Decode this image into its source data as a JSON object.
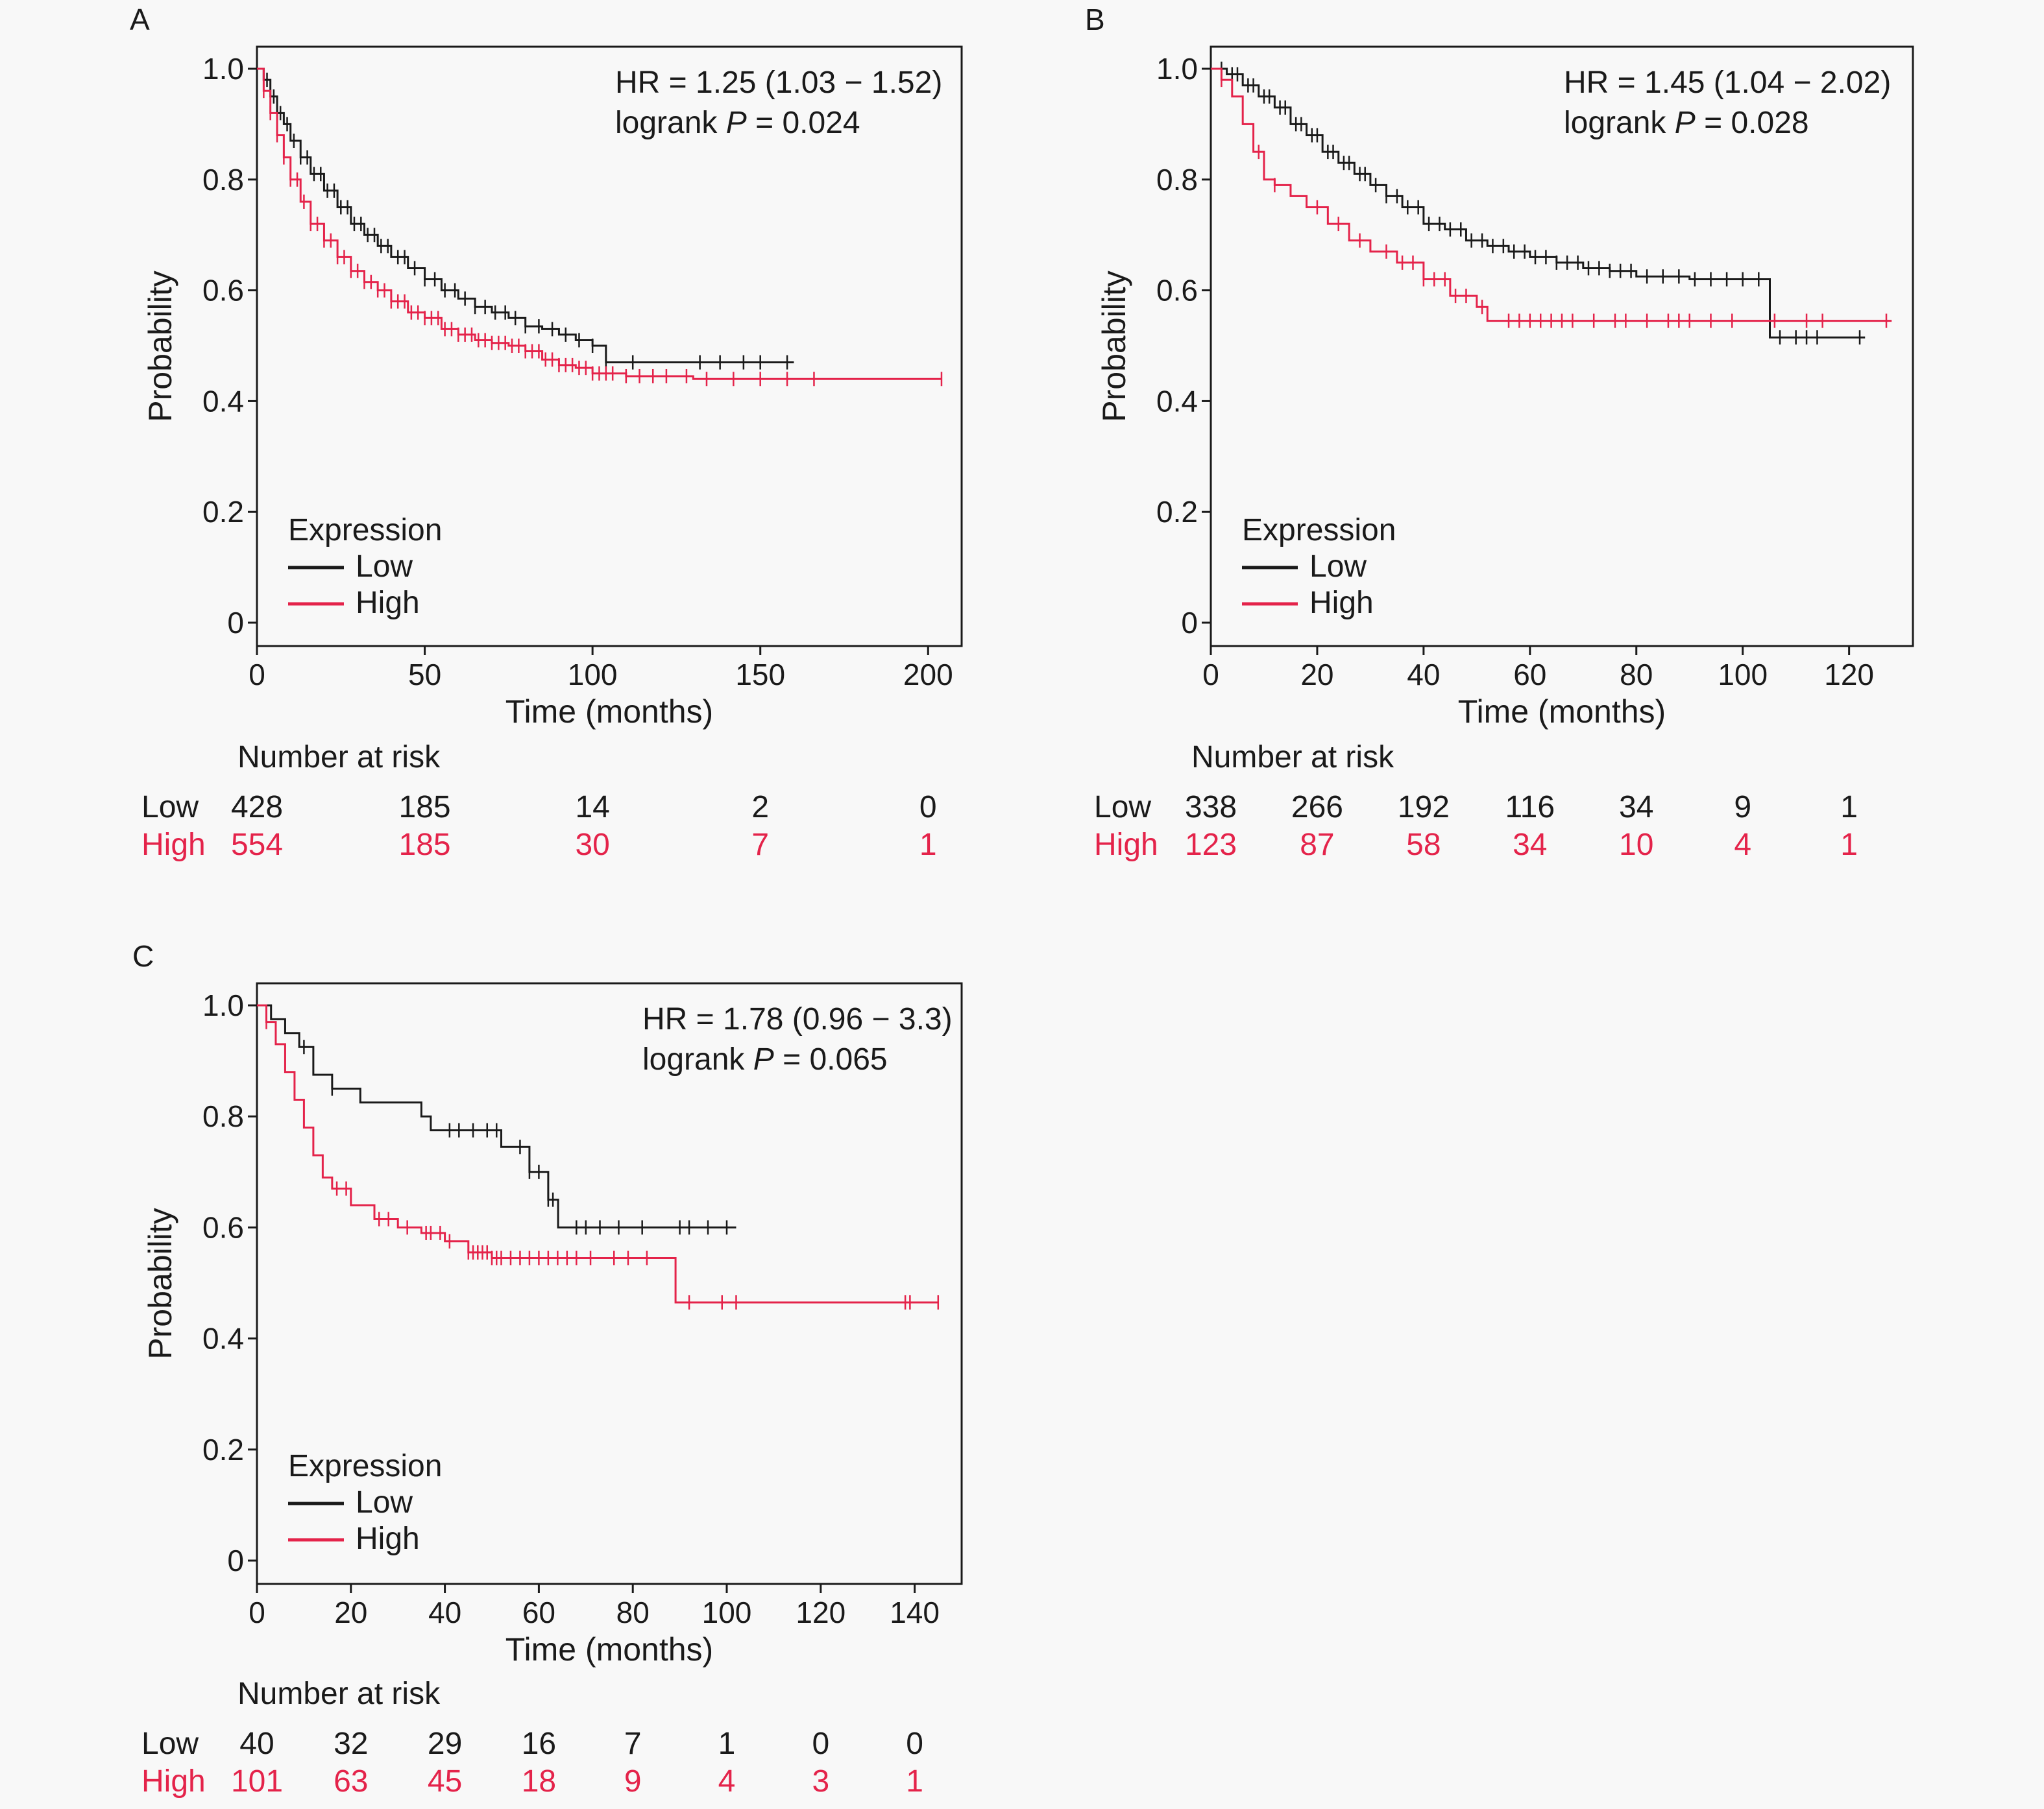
{
  "colors": {
    "low": "#1a1a1a",
    "high": "#e4234a",
    "text": "#1a1a1a",
    "background": "#f8f8f8"
  },
  "chart_data": [
    {
      "panel": "A",
      "type": "line",
      "stat_line1": "HR = 1.25 (1.03 − 1.52)",
      "stat_prefix": "logrank ",
      "stat_p": "P",
      "stat_suffix": " = 0.024",
      "xlabel": "Time (months)",
      "ylabel": "Probability",
      "xlim": [
        0,
        210
      ],
      "ylim": [
        0,
        1
      ],
      "xticks": [
        0,
        50,
        100,
        150,
        200
      ],
      "yticks": [
        0,
        0.2,
        0.4,
        0.6,
        0.8,
        1.0
      ],
      "ytick_labels": [
        "0",
        "0.2",
        "0.4",
        "0.6",
        "0.8",
        "1.0"
      ],
      "legend": {
        "title": "Expression",
        "entries": [
          "Low",
          "High"
        ],
        "position": "bottom-left"
      },
      "series": [
        {
          "name": "Low",
          "x": [
            0,
            2,
            4,
            6,
            8,
            10,
            13,
            16,
            20,
            24,
            28,
            32,
            36,
            40,
            45,
            50,
            55,
            60,
            65,
            70,
            75,
            80,
            85,
            90,
            95,
            100,
            104,
            110,
            130,
            150,
            160
          ],
          "y": [
            1.0,
            0.98,
            0.95,
            0.92,
            0.9,
            0.87,
            0.84,
            0.81,
            0.78,
            0.75,
            0.72,
            0.7,
            0.68,
            0.66,
            0.64,
            0.62,
            0.6,
            0.585,
            0.57,
            0.56,
            0.55,
            0.535,
            0.53,
            0.52,
            0.51,
            0.5,
            0.47,
            0.47,
            0.47,
            0.47,
            0.47
          ],
          "censors": [
            3,
            5,
            7,
            9,
            11,
            13,
            15,
            17,
            19,
            21,
            23,
            25,
            27,
            29,
            31,
            33,
            35,
            37,
            39,
            42,
            44,
            47,
            50,
            53,
            56,
            59,
            62,
            65,
            68,
            71,
            74,
            77,
            80,
            84,
            88,
            92,
            96,
            100,
            104,
            112,
            132,
            138,
            145,
            150,
            158
          ]
        },
        {
          "name": "High",
          "x": [
            0,
            2,
            4,
            6,
            8,
            10,
            13,
            16,
            20,
            24,
            28,
            32,
            36,
            40,
            45,
            50,
            55,
            60,
            65,
            70,
            75,
            80,
            85,
            90,
            95,
            100,
            110,
            130,
            160,
            200,
            204
          ],
          "y": [
            1.0,
            0.96,
            0.92,
            0.88,
            0.84,
            0.8,
            0.76,
            0.72,
            0.69,
            0.66,
            0.635,
            0.615,
            0.6,
            0.58,
            0.56,
            0.55,
            0.53,
            0.52,
            0.51,
            0.505,
            0.5,
            0.49,
            0.475,
            0.465,
            0.46,
            0.45,
            0.445,
            0.44,
            0.44,
            0.44,
            0.44
          ],
          "censors": [
            2,
            4,
            6,
            8,
            10,
            12,
            14,
            16,
            18,
            20,
            22,
            24,
            26,
            28,
            30,
            32,
            34,
            36,
            38,
            40,
            42,
            44,
            46,
            48,
            50,
            52,
            54,
            56,
            58,
            60,
            62,
            64,
            66,
            68,
            70,
            72,
            74,
            76,
            78,
            80,
            82,
            84,
            86,
            88,
            90,
            92,
            94,
            96,
            98,
            100,
            102,
            104,
            106,
            110,
            114,
            118,
            122,
            128,
            134,
            142,
            150,
            158,
            166,
            204
          ]
        }
      ],
      "risk_table": {
        "title": "Number at risk",
        "x": [
          0,
          50,
          100,
          150,
          200
        ],
        "rows": [
          {
            "label": "Low",
            "values": [
              "428",
              "185",
              "14",
              "2",
              "0"
            ]
          },
          {
            "label": "High",
            "values": [
              "554",
              "185",
              "30",
              "7",
              "1"
            ]
          }
        ]
      }
    },
    {
      "panel": "B",
      "type": "line",
      "stat_line1": "HR = 1.45 (1.04 − 2.02)",
      "stat_prefix": "logrank ",
      "stat_p": "P",
      "stat_suffix": " = 0.028",
      "xlabel": "Time (months)",
      "ylabel": "Probability",
      "xlim": [
        0,
        132
      ],
      "ylim": [
        0,
        1
      ],
      "xticks": [
        0,
        20,
        40,
        60,
        80,
        100,
        120
      ],
      "yticks": [
        0,
        0.2,
        0.4,
        0.6,
        0.8,
        1.0
      ],
      "ytick_labels": [
        "0",
        "0.2",
        "0.4",
        "0.6",
        "0.8",
        "1.0"
      ],
      "legend": {
        "title": "Expression",
        "entries": [
          "Low",
          "High"
        ],
        "position": "bottom-left"
      },
      "series": [
        {
          "name": "Low",
          "x": [
            0,
            3,
            6,
            9,
            12,
            15,
            18,
            21,
            24,
            27,
            30,
            33,
            36,
            40,
            44,
            48,
            52,
            56,
            60,
            65,
            70,
            75,
            80,
            90,
            100,
            105,
            105.1,
            110,
            123
          ],
          "y": [
            1.0,
            0.99,
            0.97,
            0.95,
            0.93,
            0.9,
            0.88,
            0.85,
            0.83,
            0.81,
            0.79,
            0.77,
            0.75,
            0.72,
            0.71,
            0.69,
            0.68,
            0.67,
            0.66,
            0.65,
            0.64,
            0.635,
            0.625,
            0.62,
            0.62,
            0.62,
            0.515,
            0.515,
            0.515
          ],
          "censors": [
            2,
            4,
            5,
            7,
            8,
            10,
            11,
            13,
            14,
            16,
            17,
            19,
            20,
            22,
            23,
            25,
            26,
            28,
            29,
            31,
            33,
            35,
            37,
            39,
            41,
            43,
            45,
            47,
            49,
            51,
            53,
            55,
            57,
            59,
            61,
            63,
            65,
            67,
            69,
            71,
            73,
            75,
            77,
            79,
            82,
            85,
            88,
            91,
            94,
            97,
            100,
            103,
            107,
            110,
            112,
            114,
            122
          ]
        },
        {
          "name": "High",
          "x": [
            0,
            2,
            4,
            6,
            8,
            10,
            12,
            15,
            18,
            22,
            26,
            30,
            35,
            40,
            45,
            50,
            52,
            60,
            80,
            100,
            128
          ],
          "y": [
            1.0,
            0.98,
            0.95,
            0.9,
            0.85,
            0.8,
            0.79,
            0.77,
            0.75,
            0.72,
            0.69,
            0.67,
            0.65,
            0.62,
            0.59,
            0.57,
            0.545,
            0.545,
            0.545,
            0.545,
            0.545
          ],
          "censors": [
            2,
            9,
            12,
            20,
            24,
            28,
            33,
            36,
            38,
            40,
            42,
            44,
            46,
            48,
            51,
            56,
            58,
            60,
            62,
            64,
            66,
            68,
            72,
            76,
            78,
            82,
            86,
            88,
            90,
            94,
            98,
            106,
            112,
            115,
            127
          ]
        }
      ],
      "risk_table": {
        "title": "Number at risk",
        "x": [
          0,
          20,
          40,
          60,
          80,
          100,
          120
        ],
        "rows": [
          {
            "label": "Low",
            "values": [
              "338",
              "266",
              "192",
              "116",
              "34",
              "9",
              "1"
            ]
          },
          {
            "label": "High",
            "values": [
              "123",
              "87",
              "58",
              "34",
              "10",
              "4",
              "1"
            ]
          }
        ]
      }
    },
    {
      "panel": "C",
      "type": "line",
      "stat_line1": "HR = 1.78 (0.96 − 3.3)",
      "stat_prefix": "logrank ",
      "stat_p": "P",
      "stat_suffix": " = 0.065",
      "xlabel": "Time (months)",
      "ylabel": "Probability",
      "xlim": [
        0,
        150
      ],
      "ylim": [
        0,
        1
      ],
      "xticks": [
        0,
        20,
        40,
        60,
        80,
        100,
        120,
        140
      ],
      "yticks": [
        0,
        0.2,
        0.4,
        0.6,
        0.8,
        1.0
      ],
      "ytick_labels": [
        "0",
        "0.2",
        "0.4",
        "0.6",
        "0.8",
        "1.0"
      ],
      "legend": {
        "title": "Expression",
        "entries": [
          "Low",
          "High"
        ],
        "position": "bottom-left"
      },
      "series": [
        {
          "name": "Low",
          "x": [
            0,
            3,
            6,
            9,
            12,
            16,
            22,
            35,
            37,
            50,
            52,
            58,
            62,
            64,
            64.1,
            100,
            102
          ],
          "y": [
            1.0,
            0.975,
            0.95,
            0.925,
            0.875,
            0.85,
            0.825,
            0.8,
            0.775,
            0.775,
            0.745,
            0.7,
            0.65,
            0.65,
            0.6,
            0.6,
            0.6
          ],
          "censors": [
            10,
            16,
            41,
            43,
            46,
            49,
            51,
            56,
            58,
            60,
            62,
            63,
            68,
            70,
            73,
            77,
            82,
            90,
            92,
            96,
            100
          ]
        },
        {
          "name": "High",
          "x": [
            0,
            2,
            4,
            6,
            8,
            10,
            12,
            14,
            16,
            20,
            25,
            30,
            35,
            40,
            45,
            50,
            55,
            60,
            89,
            89.1,
            110,
            145
          ],
          "y": [
            1.0,
            0.97,
            0.93,
            0.88,
            0.83,
            0.78,
            0.73,
            0.69,
            0.67,
            0.64,
            0.615,
            0.6,
            0.59,
            0.575,
            0.555,
            0.545,
            0.545,
            0.545,
            0.545,
            0.465,
            0.465,
            0.465
          ],
          "censors": [
            2,
            17,
            19,
            26,
            28,
            32,
            36,
            37,
            39,
            41,
            45,
            46,
            47,
            48,
            49,
            50,
            51,
            52,
            54,
            56,
            58,
            60,
            62,
            64,
            66,
            68,
            71,
            76,
            79,
            83,
            92,
            99,
            102,
            138,
            139,
            145
          ]
        }
      ],
      "risk_table": {
        "title": "Number at risk",
        "x": [
          0,
          20,
          40,
          60,
          80,
          100,
          120,
          140
        ],
        "rows": [
          {
            "label": "Low",
            "values": [
              "40",
              "32",
              "29",
              "16",
              "7",
              "1",
              "0",
              "0"
            ]
          },
          {
            "label": "High",
            "values": [
              "101",
              "63",
              "45",
              "18",
              "9",
              "4",
              "3",
              "1"
            ]
          }
        ]
      }
    }
  ]
}
